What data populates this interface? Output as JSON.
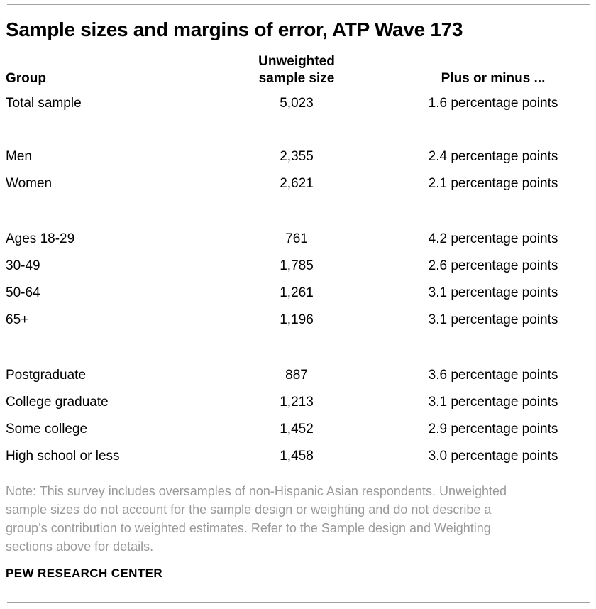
{
  "page": {
    "title": "Sample sizes and margins of error, ATP Wave 173"
  },
  "colors": {
    "text": "#000000",
    "note_gray": "#999999",
    "rule_gray": "#a3a3a3",
    "background": "#ffffff"
  },
  "table": {
    "headers": {
      "group": "Group",
      "sample_size": "Unweighted\nsample size",
      "moe": "Plus or minus ..."
    },
    "groups": [
      {
        "rows": [
          {
            "label": "Total sample",
            "n": "5,023",
            "moe": "1.6 percentage points"
          }
        ]
      },
      {
        "rows": [
          {
            "label": "Men",
            "n": "2,355",
            "moe": "2.4 percentage points"
          },
          {
            "label": "Women",
            "n": "2,621",
            "moe": "2.1 percentage points"
          }
        ]
      },
      {
        "rows": [
          {
            "label": "Ages 18-29",
            "n": "761",
            "moe": "4.2 percentage points"
          },
          {
            "label": "30-49",
            "n": "1,785",
            "moe": "2.6 percentage points"
          },
          {
            "label": "50-64",
            "n": "1,261",
            "moe": "3.1 percentage points"
          },
          {
            "label": "65+",
            "n": "1,196",
            "moe": "3.1 percentage points"
          }
        ]
      },
      {
        "rows": [
          {
            "label": "Postgraduate",
            "n": "887",
            "moe": "3.6 percentage points"
          },
          {
            "label": "College graduate",
            "n": "1,213",
            "moe": "3.1 percentage points"
          },
          {
            "label": "Some college",
            "n": "1,452",
            "moe": "2.9 percentage points"
          },
          {
            "label": "High school or less",
            "n": "1,458",
            "moe": "3.0 percentage points"
          }
        ]
      }
    ]
  },
  "note": "Note: This survey includes oversamples of non-Hispanic Asian respondents. Unweighted\nsample sizes do not account for the sample design or weighting and do not describe a\ngroup’s contribution to weighted estimates. Refer to the Sample design and Weighting\nsections above for details.",
  "footer": {
    "brand": "PEW RESEARCH CENTER"
  },
  "chart_data": {
    "type": "table",
    "title": "Sample sizes and margins of error, ATP Wave 173",
    "columns": [
      "Group",
      "Unweighted sample size",
      "Plus or minus ..."
    ],
    "rows": [
      [
        "Total sample",
        5023,
        "1.6 percentage points"
      ],
      [
        "Men",
        2355,
        "2.4 percentage points"
      ],
      [
        "Women",
        2621,
        "2.1 percentage points"
      ],
      [
        "Ages 18-29",
        761,
        "4.2 percentage points"
      ],
      [
        "30-49",
        1785,
        "2.6 percentage points"
      ],
      [
        "50-64",
        1261,
        "3.1 percentage points"
      ],
      [
        "65+",
        1196,
        "3.1 percentage points"
      ],
      [
        "Postgraduate",
        887,
        "3.6 percentage points"
      ],
      [
        "College graduate",
        1213,
        "3.1 percentage points"
      ],
      [
        "Some college",
        1452,
        "2.9 percentage points"
      ],
      [
        "High school or less",
        1458,
        "3.0 percentage points"
      ]
    ],
    "section_breaks_after_row_index": [
      0,
      2,
      6
    ],
    "source_label": "PEW RESEARCH CENTER"
  }
}
